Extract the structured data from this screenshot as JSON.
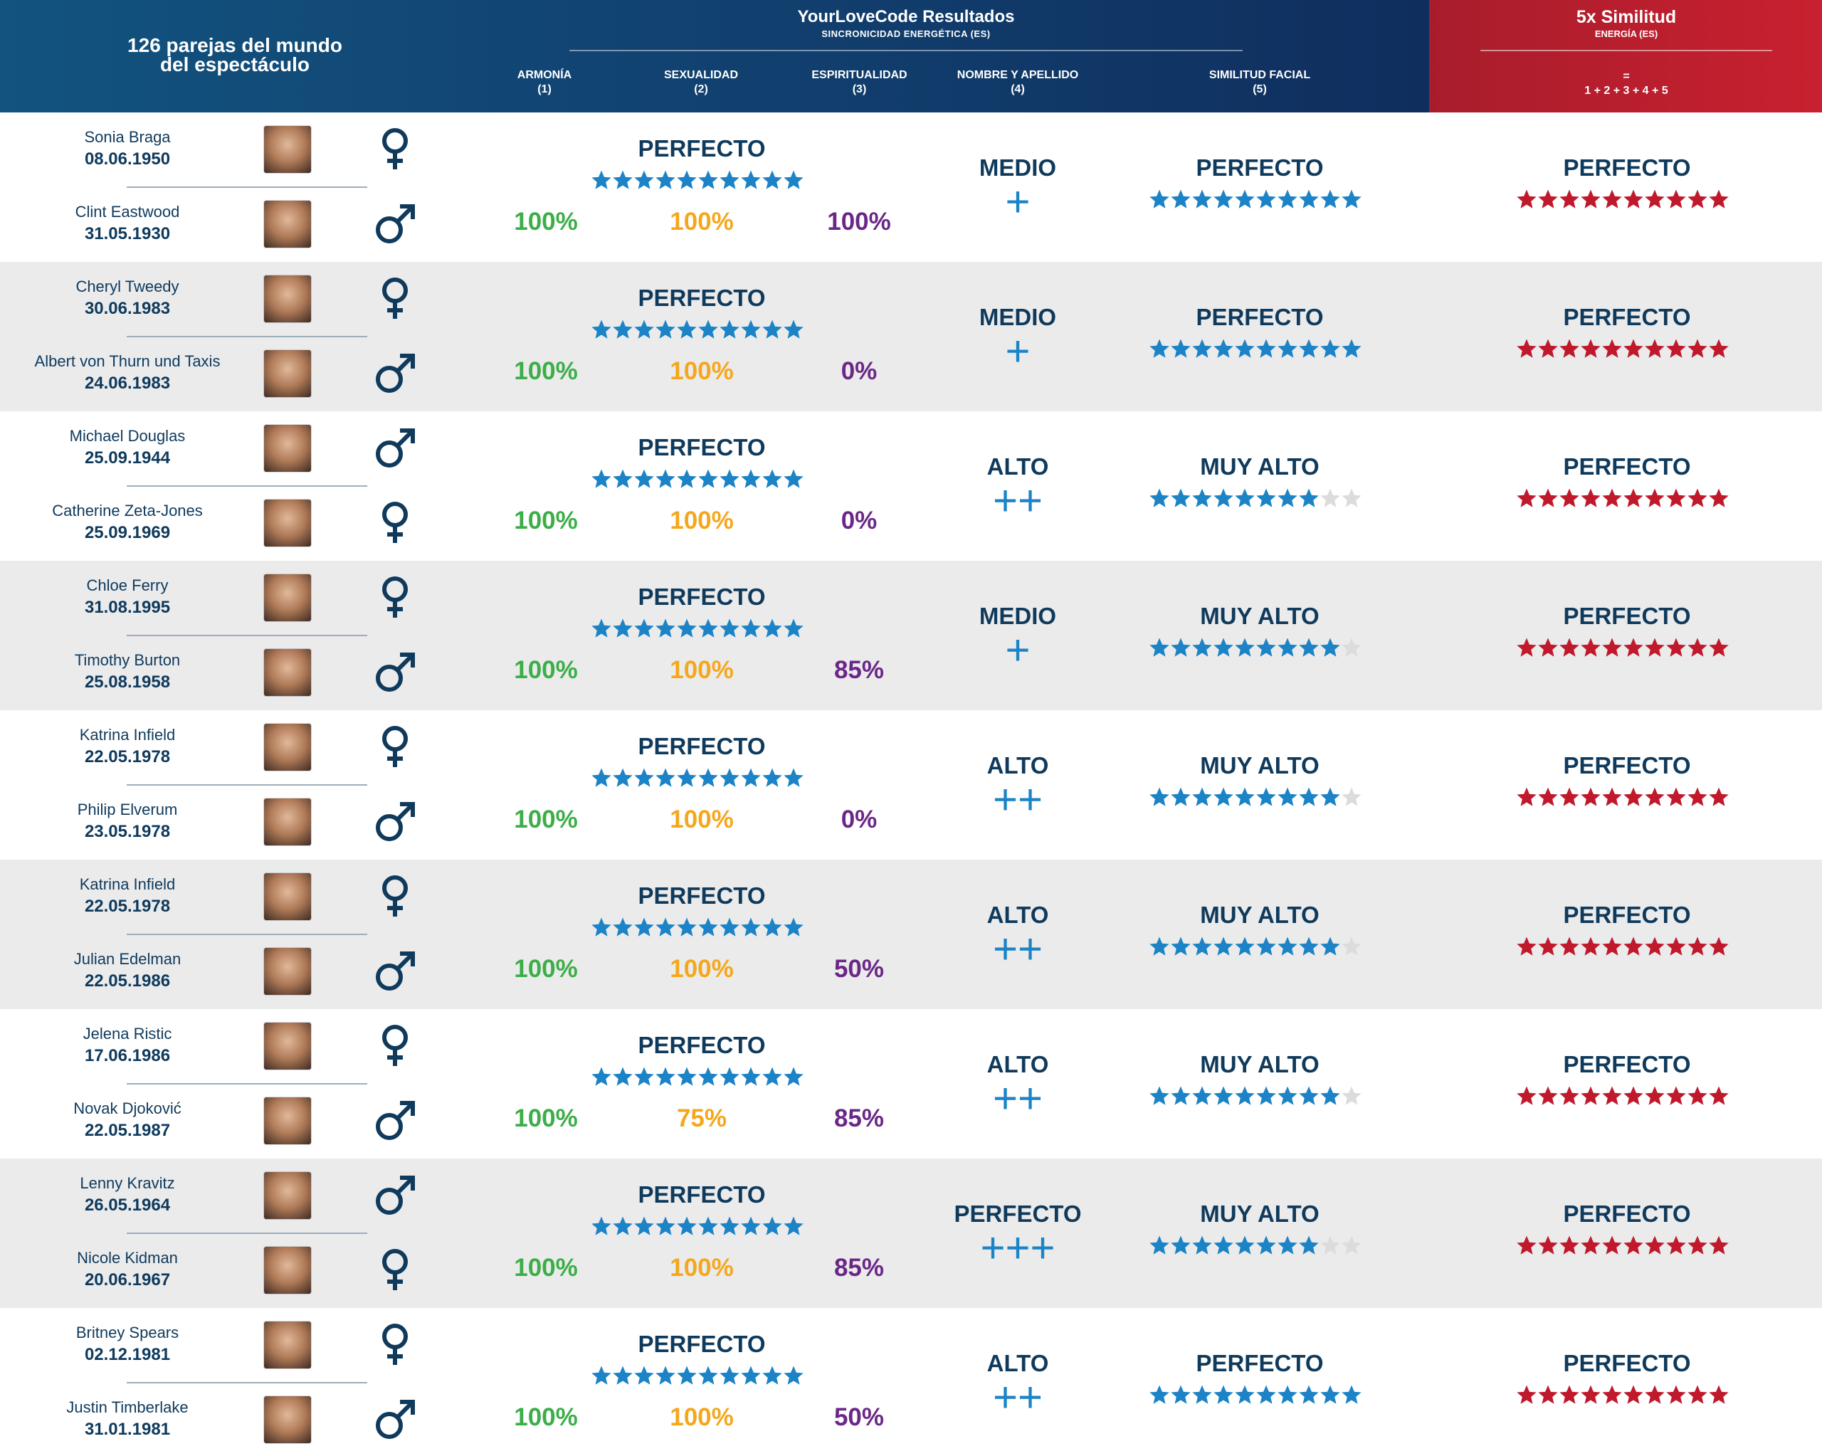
{
  "header": {
    "count_line1": "126 parejas del mundo",
    "count_line2": "del espectáculo",
    "title": "YourLoveCode Resultados",
    "subtitle": "SINCRONICIDAD ENERGÉTICA (ES)",
    "cols": [
      {
        "label": "ARMONÍA",
        "num": "(1)"
      },
      {
        "label": "SEXUALIDAD",
        "num": "(2)"
      },
      {
        "label": "ESPIRITUALIDAD",
        "num": "(3)"
      },
      {
        "label": "NOMBRE Y APELLIDO",
        "num": "(4)"
      },
      {
        "label": "SIMILITUD FACIAL",
        "num": "(5)"
      }
    ],
    "sim_title": "5x Similitud",
    "sim_sub": "ENERGÍA (ES)",
    "sim_eq": "=",
    "sim_formula": "1 + 2 + 3 + 4 + 5"
  },
  "colors": {
    "blue_star": "#1b83c6",
    "red_star": "#c0192c",
    "empty_star": "#dcdcdc"
  },
  "pairs": [
    {
      "p1": {
        "name": "Sonia Braga",
        "date": "08.06.1950",
        "gender": "female"
      },
      "p2": {
        "name": "Clint Eastwood",
        "date": "31.05.1930",
        "gender": "male"
      },
      "sync": {
        "label": "PERFECTO",
        "stars": 10,
        "armonia": "100%",
        "sexualidad": "100%",
        "espiritualidad": "100%"
      },
      "name": {
        "label": "MEDIO",
        "plus": "+"
      },
      "facial": {
        "label": "PERFECTO",
        "stars": 10
      },
      "total": {
        "label": "PERFECTO",
        "stars": 10
      }
    },
    {
      "p1": {
        "name": "Cheryl Tweedy",
        "date": "30.06.1983",
        "gender": "female"
      },
      "p2": {
        "name": "Albert von Thurn und Taxis",
        "date": "24.06.1983",
        "gender": "male"
      },
      "sync": {
        "label": "PERFECTO",
        "stars": 10,
        "armonia": "100%",
        "sexualidad": "100%",
        "espiritualidad": "0%"
      },
      "name": {
        "label": "MEDIO",
        "plus": "+"
      },
      "facial": {
        "label": "PERFECTO",
        "stars": 10
      },
      "total": {
        "label": "PERFECTO",
        "stars": 10
      }
    },
    {
      "p1": {
        "name": "Michael Douglas",
        "date": "25.09.1944",
        "gender": "male"
      },
      "p2": {
        "name": "Catherine Zeta-Jones",
        "date": "25.09.1969",
        "gender": "female"
      },
      "sync": {
        "label": "PERFECTO",
        "stars": 10,
        "armonia": "100%",
        "sexualidad": "100%",
        "espiritualidad": "0%"
      },
      "name": {
        "label": "ALTO",
        "plus": "++"
      },
      "facial": {
        "label": "MUY ALTO",
        "stars": 8
      },
      "total": {
        "label": "PERFECTO",
        "stars": 10
      }
    },
    {
      "p1": {
        "name": "Chloe Ferry",
        "date": "31.08.1995",
        "gender": "female"
      },
      "p2": {
        "name": "Timothy Burton",
        "date": "25.08.1958",
        "gender": "male"
      },
      "sync": {
        "label": "PERFECTO",
        "stars": 10,
        "armonia": "100%",
        "sexualidad": "100%",
        "espiritualidad": "85%"
      },
      "name": {
        "label": "MEDIO",
        "plus": "+"
      },
      "facial": {
        "label": "MUY ALTO",
        "stars": 9
      },
      "total": {
        "label": "PERFECTO",
        "stars": 10
      }
    },
    {
      "p1": {
        "name": "Katrina Infield",
        "date": "22.05.1978",
        "gender": "female"
      },
      "p2": {
        "name": "Philip Elverum",
        "date": "23.05.1978",
        "gender": "male"
      },
      "sync": {
        "label": "PERFECTO",
        "stars": 10,
        "armonia": "100%",
        "sexualidad": "100%",
        "espiritualidad": "0%"
      },
      "name": {
        "label": "ALTO",
        "plus": "++"
      },
      "facial": {
        "label": "MUY ALTO",
        "stars": 9
      },
      "total": {
        "label": "PERFECTO",
        "stars": 10
      }
    },
    {
      "p1": {
        "name": "Katrina Infield",
        "date": "22.05.1978",
        "gender": "female"
      },
      "p2": {
        "name": "Julian Edelman",
        "date": "22.05.1986",
        "gender": "male"
      },
      "sync": {
        "label": "PERFECTO",
        "stars": 10,
        "armonia": "100%",
        "sexualidad": "100%",
        "espiritualidad": "50%"
      },
      "name": {
        "label": "ALTO",
        "plus": "++"
      },
      "facial": {
        "label": "MUY ALTO",
        "stars": 9
      },
      "total": {
        "label": "PERFECTO",
        "stars": 10
      }
    },
    {
      "p1": {
        "name": "Jelena Ristic",
        "date": "17.06.1986",
        "gender": "female"
      },
      "p2": {
        "name": "Novak Djoković",
        "date": "22.05.1987",
        "gender": "male"
      },
      "sync": {
        "label": "PERFECTO",
        "stars": 10,
        "armonia": "100%",
        "sexualidad": "75%",
        "espiritualidad": "85%"
      },
      "name": {
        "label": "ALTO",
        "plus": "++"
      },
      "facial": {
        "label": "MUY ALTO",
        "stars": 9
      },
      "total": {
        "label": "PERFECTO",
        "stars": 10
      }
    },
    {
      "p1": {
        "name": "Lenny Kravitz",
        "date": "26.05.1964",
        "gender": "male"
      },
      "p2": {
        "name": "Nicole Kidman",
        "date": "20.06.1967",
        "gender": "female"
      },
      "sync": {
        "label": "PERFECTO",
        "stars": 10,
        "armonia": "100%",
        "sexualidad": "100%",
        "espiritualidad": "85%"
      },
      "name": {
        "label": "PERFECTO",
        "plus": "+++"
      },
      "facial": {
        "label": "MUY ALTO",
        "stars": 8
      },
      "total": {
        "label": "PERFECTO",
        "stars": 10
      }
    },
    {
      "p1": {
        "name": "Britney Spears",
        "date": "02.12.1981",
        "gender": "female"
      },
      "p2": {
        "name": "Justin Timberlake",
        "date": "31.01.1981",
        "gender": "male"
      },
      "sync": {
        "label": "PERFECTO",
        "stars": 10,
        "armonia": "100%",
        "sexualidad": "100%",
        "espiritualidad": "50%"
      },
      "name": {
        "label": "ALTO",
        "plus": "++"
      },
      "facial": {
        "label": "PERFECTO",
        "stars": 10
      },
      "total": {
        "label": "PERFECTO",
        "stars": 10
      }
    }
  ]
}
